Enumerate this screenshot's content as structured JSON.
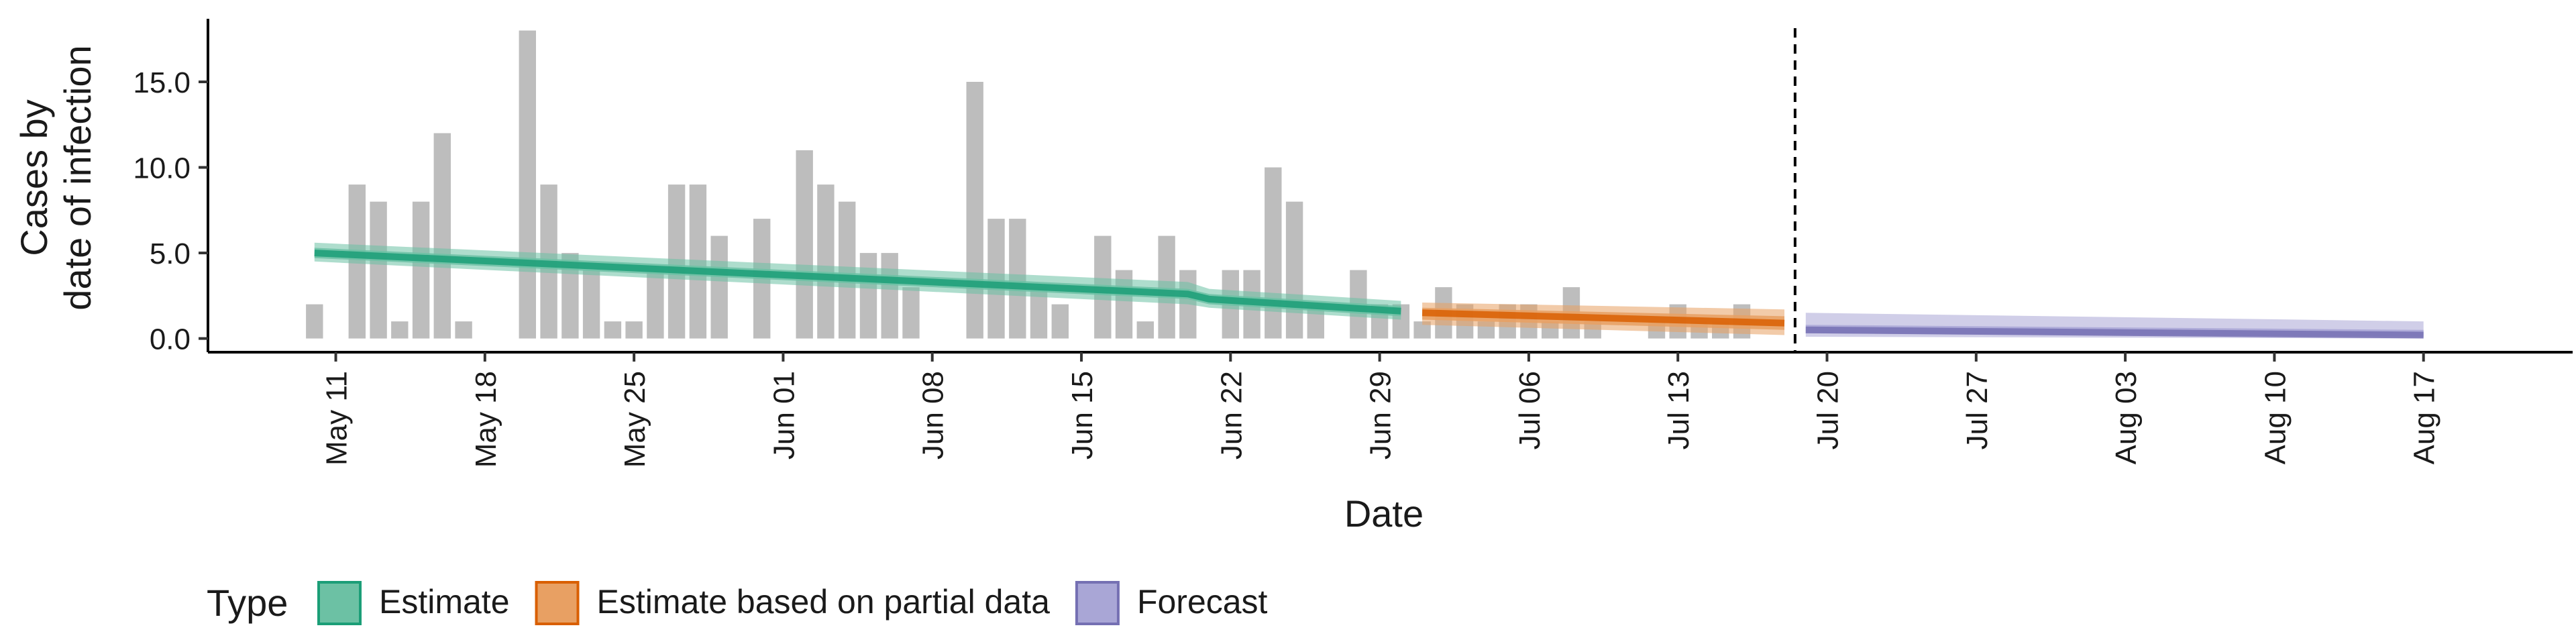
{
  "chart_data": {
    "type": "bar",
    "xlabel": "Date",
    "ylabel_lines": [
      "Cases by",
      "date of infection"
    ],
    "y_ticks": [
      0,
      5,
      10,
      15
    ],
    "y_tick_labels": [
      "0.0",
      "5.0",
      "10.0",
      "15.0"
    ],
    "ylim": [
      -0.8,
      19
    ],
    "x_start": "2020-05-05",
    "x_end": "2020-08-24",
    "x_ticks": [
      {
        "date": "2020-05-11",
        "label": "May 11"
      },
      {
        "date": "2020-05-18",
        "label": "May 18"
      },
      {
        "date": "2020-05-25",
        "label": "May 25"
      },
      {
        "date": "2020-06-01",
        "label": "Jun 01"
      },
      {
        "date": "2020-06-08",
        "label": "Jun 08"
      },
      {
        "date": "2020-06-15",
        "label": "Jun 15"
      },
      {
        "date": "2020-06-22",
        "label": "Jun 22"
      },
      {
        "date": "2020-06-29",
        "label": "Jun 29"
      },
      {
        "date": "2020-07-06",
        "label": "Jul 06"
      },
      {
        "date": "2020-07-13",
        "label": "Jul 13"
      },
      {
        "date": "2020-07-20",
        "label": "Jul 20"
      },
      {
        "date": "2020-07-27",
        "label": "Jul 27"
      },
      {
        "date": "2020-08-03",
        "label": "Aug 03"
      },
      {
        "date": "2020-08-10",
        "label": "Aug 10"
      },
      {
        "date": "2020-08-17",
        "label": "Aug 17"
      }
    ],
    "bars_start_date": "2020-05-10",
    "bars": [
      2,
      0,
      9,
      8,
      1,
      8,
      12,
      1,
      0,
      0,
      18,
      9,
      5,
      4,
      1,
      1,
      4,
      9,
      9,
      6,
      0,
      7,
      0,
      11,
      9,
      8,
      5,
      5,
      3,
      0,
      0,
      15,
      7,
      7,
      3,
      2,
      0,
      6,
      4,
      1,
      6,
      4,
      0,
      4,
      4,
      10,
      8,
      2,
      0,
      4,
      2,
      2,
      1,
      3,
      2,
      1,
      2,
      2,
      1,
      3,
      1,
      0,
      0,
      1,
      2,
      1,
      1,
      2
    ],
    "forecast_date": "2020-07-18",
    "series": [
      {
        "name": "Estimate",
        "color": "#1b9e77",
        "fill": "#6cc1a4",
        "points": [
          {
            "date": "2020-05-10",
            "median": 5.0,
            "lo50": 4.7,
            "hi50": 5.3,
            "lo90": 4.5,
            "hi90": 5.6
          },
          {
            "date": "2020-06-20",
            "median": 2.6,
            "lo50": 2.3,
            "hi50": 2.9,
            "lo90": 2.0,
            "hi90": 3.3
          },
          {
            "date": "2020-06-21",
            "median": 2.3,
            "lo50": 2.0,
            "hi50": 2.6,
            "lo90": 1.8,
            "hi90": 2.9
          },
          {
            "date": "2020-06-30",
            "median": 1.6,
            "lo50": 1.3,
            "hi50": 1.9,
            "lo90": 1.1,
            "hi90": 2.2
          }
        ]
      },
      {
        "name": "Estimate based on partial data",
        "color": "#d95f02",
        "fill": "#e8a063",
        "points": [
          {
            "date": "2020-07-01",
            "median": 1.5,
            "lo50": 1.1,
            "hi50": 1.8,
            "lo90": 0.8,
            "hi90": 2.1
          },
          {
            "date": "2020-07-18",
            "median": 0.9,
            "lo50": 0.5,
            "hi50": 1.3,
            "lo90": 0.2,
            "hi90": 1.7
          }
        ]
      },
      {
        "name": "Forecast",
        "color": "#7570b3",
        "fill": "#a9a6d6",
        "points": [
          {
            "date": "2020-07-19",
            "median": 0.5,
            "lo50": 0.3,
            "hi50": 0.8,
            "lo90": 0.1,
            "hi90": 1.5
          },
          {
            "date": "2020-08-17",
            "median": 0.2,
            "lo50": 0.1,
            "hi50": 0.5,
            "lo90": 0.0,
            "hi90": 1.0
          }
        ]
      }
    ],
    "legend": {
      "title": "Type",
      "position": "bottom-left",
      "entries": [
        {
          "label": "Estimate",
          "fill": "#6cc1a4",
          "stroke": "#1b9e77"
        },
        {
          "label": "Estimate based on partial data",
          "fill": "#e8a063",
          "stroke": "#d95f02"
        },
        {
          "label": "Forecast",
          "fill": "#a9a6d6",
          "stroke": "#7570b3"
        }
      ]
    },
    "bar_color": "#bdbdbd",
    "grid": false
  }
}
